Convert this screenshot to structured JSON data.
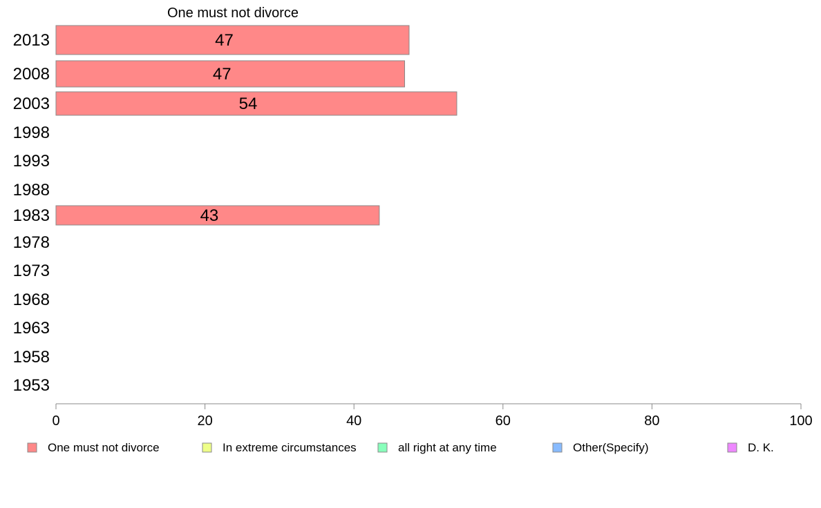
{
  "chart_data": {
    "type": "bar",
    "orientation": "horizontal",
    "title": "One must not divorce",
    "categories": [
      "2013",
      "2008",
      "2003",
      "1998",
      "1993",
      "1988",
      "1983",
      "1978",
      "1973",
      "1968",
      "1963",
      "1958",
      "1953"
    ],
    "series": [
      {
        "name": "One must not divorce",
        "color": "#ff8888",
        "values": [
          47.4,
          46.8,
          53.8,
          null,
          null,
          null,
          43.4,
          null,
          null,
          null,
          null,
          null,
          null
        ],
        "labels": [
          "47",
          "47",
          "54",
          "",
          "",
          "",
          "43",
          "",
          "",
          "",
          "",
          "",
          ""
        ]
      }
    ],
    "xlim": [
      0,
      100
    ],
    "xticks": [
      "0",
      "20",
      "40",
      "60",
      "80",
      "100"
    ],
    "grid": false,
    "legend": {
      "placement": "bottom",
      "items": [
        {
          "label": "One must not divorce",
          "color": "#ff8888"
        },
        {
          "label": "In extreme circumstances",
          "color": "#eeff88"
        },
        {
          "label": "all right at any time",
          "color": "#88ffbb"
        },
        {
          "label": "Other(Specify)",
          "color": "#88bbff"
        },
        {
          "label": "D. K.",
          "color": "#ee88ff"
        }
      ]
    }
  }
}
